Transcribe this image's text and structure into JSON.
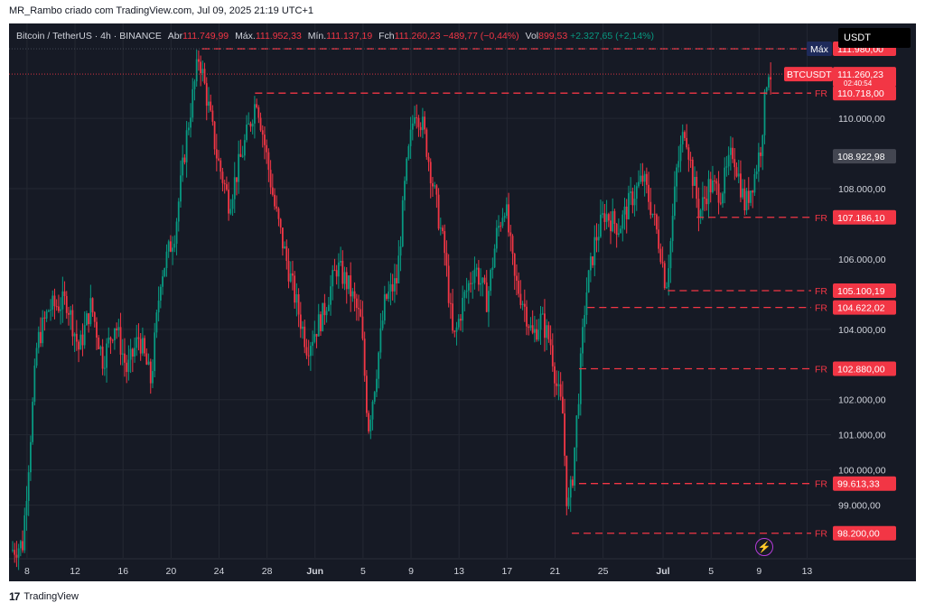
{
  "caption": "MR_Rambo criado com TradingView.com, Jul 09, 2025 21:19 UTC+1",
  "header": {
    "symbol": "Bitcoin / TetherUS · 4h · BINANCE",
    "open_label": "Abr",
    "open": "111.749,99",
    "high_label": "Máx.",
    "high": "111.952,33",
    "low_label": "Mín.",
    "low": "111.137,19",
    "close_label": "Fch",
    "close": "111.260,23",
    "change": "−489,77 (−0,44%)",
    "vol_label": "Vol",
    "vol": "899,53",
    "vol_change": "+2.327,65 (+2,14%)"
  },
  "currency": "USDT",
  "footer": {
    "brand": "TradingView"
  },
  "colors": {
    "up": "#089981",
    "down": "#f23645",
    "bg": "#161a25",
    "grid": "#242833",
    "text": "#d1d4dc",
    "level": "#f23645",
    "cursor_tag": "#434651"
  },
  "chart_data": {
    "type": "candlestick",
    "interval": "4h",
    "ylim": [
      97500,
      112700
    ],
    "y_ticks": [
      {
        "v": 99000,
        "label": "99.000,00"
      },
      {
        "v": 100000,
        "label": "100.000,00"
      },
      {
        "v": 101000,
        "label": "101.000,00"
      },
      {
        "v": 102000,
        "label": "102.000,00"
      },
      {
        "v": 104000,
        "label": "104.000,00"
      },
      {
        "v": 106000,
        "label": "106.000,00"
      },
      {
        "v": 108000,
        "label": "108.000,00"
      },
      {
        "v": 110000,
        "label": "110.000,00"
      }
    ],
    "x_ticks": [
      {
        "day": 8,
        "label": "8"
      },
      {
        "day": 12,
        "label": "12"
      },
      {
        "day": 16,
        "label": "16"
      },
      {
        "day": 20,
        "label": "20"
      },
      {
        "day": 24,
        "label": "24"
      },
      {
        "day": 28,
        "label": "28"
      },
      {
        "day": 32,
        "label": "Jun"
      },
      {
        "day": 36,
        "label": "5"
      },
      {
        "day": 40,
        "label": "9"
      },
      {
        "day": 44,
        "label": "13"
      },
      {
        "day": 48,
        "label": "17"
      },
      {
        "day": 52,
        "label": "21"
      },
      {
        "day": 56,
        "label": "25"
      },
      {
        "day": 61,
        "label": "Jul"
      },
      {
        "day": 65,
        "label": "5"
      },
      {
        "day": 69,
        "label": "9"
      },
      {
        "day": 73,
        "label": "13"
      }
    ],
    "x_range_days": [
      6.5,
      75
    ],
    "price_path": [
      [
        6.8,
        97700
      ],
      [
        7.8,
        97900
      ],
      [
        8.3,
        100200
      ],
      [
        9.0,
        103600
      ],
      [
        10.0,
        104600
      ],
      [
        11.5,
        104800
      ],
      [
        12.5,
        103400
      ],
      [
        13.5,
        104700
      ],
      [
        14.5,
        103100
      ],
      [
        15.5,
        104200
      ],
      [
        16.5,
        102800
      ],
      [
        17.5,
        103800
      ],
      [
        18.5,
        102500
      ],
      [
        19.3,
        105500
      ],
      [
        20.5,
        106800
      ],
      [
        21.5,
        109600
      ],
      [
        22.5,
        111800
      ],
      [
        23.3,
        110300
      ],
      [
        24.0,
        108900
      ],
      [
        25.0,
        107600
      ],
      [
        26.0,
        108900
      ],
      [
        27.3,
        110600
      ],
      [
        28.0,
        109200
      ],
      [
        28.8,
        107500
      ],
      [
        29.5,
        106400
      ],
      [
        30.5,
        104900
      ],
      [
        31.5,
        103500
      ],
      [
        32.8,
        104400
      ],
      [
        34.0,
        105800
      ],
      [
        35.0,
        105200
      ],
      [
        36.0,
        104200
      ],
      [
        36.6,
        101200
      ],
      [
        37.2,
        102600
      ],
      [
        38.0,
        104800
      ],
      [
        39.0,
        105400
      ],
      [
        39.7,
        108300
      ],
      [
        40.5,
        110400
      ],
      [
        41.2,
        109700
      ],
      [
        42.2,
        107700
      ],
      [
        43.0,
        106100
      ],
      [
        43.7,
        103600
      ],
      [
        44.5,
        104800
      ],
      [
        45.5,
        105800
      ],
      [
        46.5,
        104800
      ],
      [
        47.3,
        106700
      ],
      [
        48.0,
        107600
      ],
      [
        48.8,
        105400
      ],
      [
        49.5,
        104800
      ],
      [
        50.3,
        103800
      ],
      [
        51.0,
        104300
      ],
      [
        51.8,
        103600
      ],
      [
        52.3,
        102400
      ],
      [
        52.8,
        101600
      ],
      [
        53.2,
        98800
      ],
      [
        53.6,
        99700
      ],
      [
        54.2,
        102500
      ],
      [
        54.7,
        104900
      ],
      [
        55.5,
        106500
      ],
      [
        56.3,
        107300
      ],
      [
        57.5,
        106900
      ],
      [
        58.5,
        107700
      ],
      [
        59.5,
        108300
      ],
      [
        60.3,
        107300
      ],
      [
        61.0,
        106200
      ],
      [
        61.4,
        105200
      ],
      [
        61.8,
        106500
      ],
      [
        62.3,
        108500
      ],
      [
        63.0,
        109800
      ],
      [
        63.6,
        108400
      ],
      [
        64.2,
        107300
      ],
      [
        65.0,
        108100
      ],
      [
        66.0,
        107900
      ],
      [
        67.0,
        109100
      ],
      [
        68.0,
        107500
      ],
      [
        68.8,
        108400
      ],
      [
        69.3,
        109200
      ],
      [
        69.6,
        110300
      ],
      [
        69.9,
        111500
      ],
      [
        70.1,
        111260
      ]
    ],
    "levels": [
      {
        "label": "FR",
        "value": 110718,
        "value_label": "110.718,00",
        "start_day": 27.0
      },
      {
        "label": "FR",
        "value": 107186.1,
        "value_label": "107.186,10",
        "start_day": 63.8
      },
      {
        "label": "FR",
        "value": 105100.19,
        "value_label": "105.100,19",
        "start_day": 61.4
      },
      {
        "label": "FR",
        "value": 104622.02,
        "value_label": "104.622,02",
        "start_day": 54.7
      },
      {
        "label": "FR",
        "value": 102880,
        "value_label": "102.880,00",
        "start_day": 54.0
      },
      {
        "label": "FR",
        "value": 99613.33,
        "value_label": "99.613,33",
        "start_day": 54.0
      },
      {
        "label": "FR",
        "value": 98200,
        "value_label": "98.200,00",
        "start_day": 53.4
      }
    ],
    "max_level": {
      "label": "Máx",
      "value": 111980,
      "value_label": "111.980,00",
      "start_day": 22.6
    },
    "last_price": {
      "symbol": "BTCUSDT",
      "value": 111260.23,
      "value_label": "111.260,23",
      "countdown": "02:40:54"
    },
    "cursor": {
      "value": 108922.98,
      "value_label": "108.922,98"
    }
  }
}
